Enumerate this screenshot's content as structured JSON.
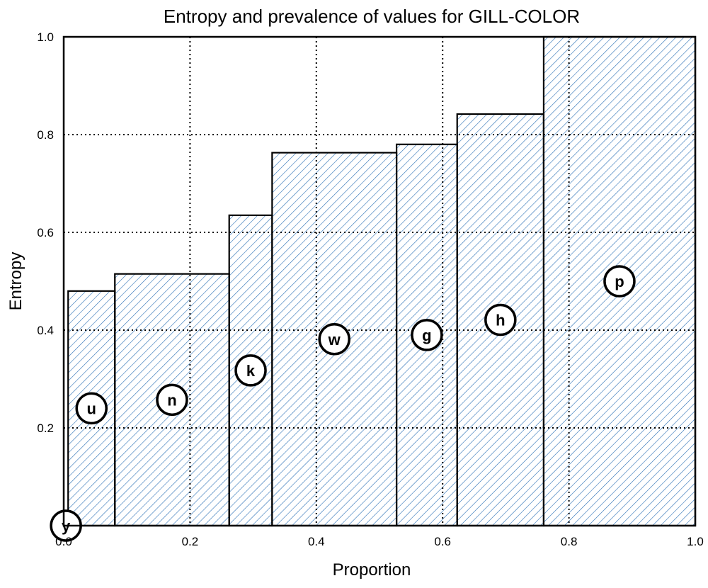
{
  "chart_data": {
    "type": "bar",
    "title": "Entropy and prevalence of values for GILL-COLOR",
    "xlabel": "Proportion",
    "ylabel": "Entropy",
    "xlim": [
      0,
      1
    ],
    "ylim": [
      0,
      1
    ],
    "grid": true,
    "x_ticks": [
      "0.0",
      "0.2",
      "0.4",
      "0.6",
      "0.8",
      "1.0"
    ],
    "y_ticks": [
      "0.2",
      "0.4",
      "0.6",
      "0.8",
      "1.0"
    ],
    "bars": [
      {
        "label": "y",
        "x_start": 0.0,
        "x_end": 0.007,
        "entropy": 0.0
      },
      {
        "label": "u",
        "x_start": 0.007,
        "x_end": 0.081,
        "entropy": 0.48
      },
      {
        "label": "n",
        "x_start": 0.081,
        "x_end": 0.262,
        "entropy": 0.515
      },
      {
        "label": "k",
        "x_start": 0.262,
        "x_end": 0.33,
        "entropy": 0.635
      },
      {
        "label": "w",
        "x_start": 0.33,
        "x_end": 0.527,
        "entropy": 0.763
      },
      {
        "label": "g",
        "x_start": 0.527,
        "x_end": 0.623,
        "entropy": 0.78
      },
      {
        "label": "h",
        "x_start": 0.623,
        "x_end": 0.76,
        "entropy": 0.842
      },
      {
        "label": "p",
        "x_start": 0.76,
        "x_end": 1.0,
        "entropy": 1.0
      }
    ],
    "hatch_color": "#2a6fb5"
  }
}
